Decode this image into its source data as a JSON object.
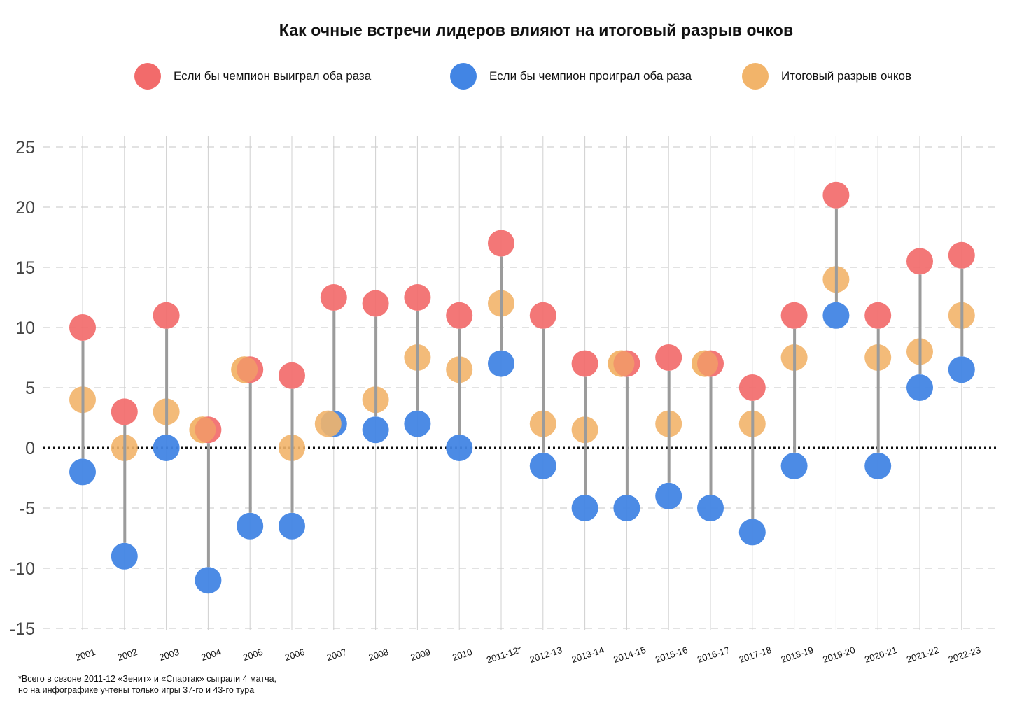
{
  "chart_data": {
    "type": "scatter",
    "subtype": "dumbbell",
    "title": "Как очные встречи лидеров влияют на итоговый разрыв очков",
    "xlabel": "",
    "ylabel": "",
    "ylim": [
      -15,
      25
    ],
    "yticks": [
      25,
      20,
      15,
      10,
      5,
      0,
      -5,
      -10,
      -15
    ],
    "grid": true,
    "legend_position": "top",
    "categories": [
      "2001",
      "2002",
      "2003",
      "2004",
      "2005",
      "2006",
      "2007",
      "2008",
      "2009",
      "2010",
      "2011-12*",
      "2012-13",
      "2013-14",
      "2014-15",
      "2015-16",
      "2016-17",
      "2017-18",
      "2018-19",
      "2019-20",
      "2020-21",
      "2021-22",
      "2022-23"
    ],
    "series": [
      {
        "name": "Если бы чемпион выиграл оба раза",
        "color": "#F26B6B",
        "values": [
          10,
          3,
          11,
          1.5,
          6.5,
          6,
          12.5,
          12,
          12.5,
          11,
          17,
          11,
          7,
          7,
          7.5,
          7,
          5,
          11,
          21,
          11,
          15.5,
          16
        ]
      },
      {
        "name": "Если бы чемпион проиграл оба раза",
        "color": "#4285E4",
        "values": [
          -2,
          -9,
          0,
          -11,
          -6.5,
          -6.5,
          2,
          1.5,
          2,
          0,
          7,
          -1.5,
          -5,
          -5,
          -4,
          -5,
          -7,
          -1.5,
          11,
          -1.5,
          5,
          6.5
        ]
      },
      {
        "name": "Итоговый разрыв очков",
        "color": "#F2B46A",
        "values": [
          4,
          0,
          3,
          1.5,
          6.5,
          0,
          2,
          4,
          7.5,
          6.5,
          12,
          2,
          1.5,
          7,
          2,
          7,
          2,
          7.5,
          14,
          7.5,
          8,
          11
        ]
      }
    ],
    "footnote": [
      "*Всего в сезоне 2011-12 «Зенит» и «Спартак» сыграли 4 матча,",
      "но на инфографике учтены только игры 37-го и 43-го тура"
    ]
  },
  "legend": [
    {
      "label": "Если бы чемпион выиграл оба раза",
      "color": "#F26B6B"
    },
    {
      "label": "Если бы чемпион проиграл оба раза",
      "color": "#4285E4"
    },
    {
      "label": "Итоговый разрыв очков",
      "color": "#F2B46A"
    }
  ],
  "colors": {
    "connector": "#9B9B9B",
    "gridline": "#D0D0D0",
    "zero_line": "#111111"
  }
}
